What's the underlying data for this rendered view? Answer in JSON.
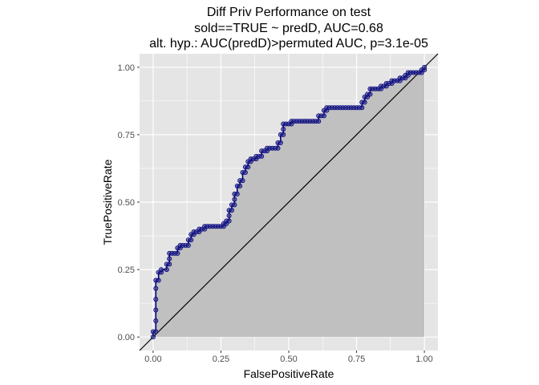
{
  "chart_data": {
    "type": "line",
    "title_lines": [
      "Diff Priv Performance on test",
      "sold==TRUE ~ predD, AUC=0.68",
      "alt. hyp.: AUC(predD)>permuted AUC, p=3.1e-05"
    ],
    "xlabel": "FalsePositiveRate",
    "ylabel": "TruePositiveRate",
    "xlim": [
      -0.05,
      1.05
    ],
    "ylim": [
      -0.05,
      1.05
    ],
    "x_ticks": [
      0,
      0.25,
      0.5,
      0.75,
      1
    ],
    "x_tick_labels": [
      "0.00",
      "0.25",
      "0.50",
      "0.75",
      "1.00"
    ],
    "y_ticks": [
      0,
      0.25,
      0.5,
      0.75,
      1
    ],
    "y_tick_labels": [
      "0.00",
      "0.25",
      "0.50",
      "0.75",
      "1.00"
    ],
    "grid": true,
    "panel_background": "#e5e5e5",
    "grid_color": "#ffffff",
    "area_fill": "#c0c0c0",
    "curve_color": "#000080",
    "point_color": "#3c3c8c",
    "diagonal_color": "#000000",
    "diagonal": [
      [
        -0.05,
        -0.05
      ],
      [
        1.05,
        1.05
      ]
    ],
    "series": [
      {
        "points": [
          [
            0.0,
            0.0
          ],
          [
            0.0,
            0.02
          ],
          [
            0.01,
            0.02
          ],
          [
            0.01,
            0.06
          ],
          [
            0.01,
            0.1
          ],
          [
            0.01,
            0.14
          ],
          [
            0.01,
            0.18
          ],
          [
            0.01,
            0.21
          ],
          [
            0.02,
            0.21
          ],
          [
            0.02,
            0.24
          ],
          [
            0.03,
            0.24
          ],
          [
            0.03,
            0.25
          ],
          [
            0.05,
            0.25
          ],
          [
            0.05,
            0.27
          ],
          [
            0.06,
            0.27
          ],
          [
            0.06,
            0.29
          ],
          [
            0.06,
            0.31
          ],
          [
            0.07,
            0.31
          ],
          [
            0.08,
            0.31
          ],
          [
            0.09,
            0.31
          ],
          [
            0.09,
            0.33
          ],
          [
            0.1,
            0.33
          ],
          [
            0.1,
            0.34
          ],
          [
            0.11,
            0.34
          ],
          [
            0.12,
            0.34
          ],
          [
            0.13,
            0.34
          ],
          [
            0.13,
            0.36
          ],
          [
            0.14,
            0.36
          ],
          [
            0.14,
            0.38
          ],
          [
            0.15,
            0.38
          ],
          [
            0.15,
            0.39
          ],
          [
            0.16,
            0.39
          ],
          [
            0.17,
            0.39
          ],
          [
            0.17,
            0.4
          ],
          [
            0.18,
            0.4
          ],
          [
            0.19,
            0.4
          ],
          [
            0.19,
            0.41
          ],
          [
            0.2,
            0.41
          ],
          [
            0.21,
            0.41
          ],
          [
            0.22,
            0.41
          ],
          [
            0.23,
            0.41
          ],
          [
            0.24,
            0.41
          ],
          [
            0.25,
            0.41
          ],
          [
            0.26,
            0.41
          ],
          [
            0.26,
            0.42
          ],
          [
            0.27,
            0.42
          ],
          [
            0.27,
            0.43
          ],
          [
            0.28,
            0.43
          ],
          [
            0.28,
            0.45
          ],
          [
            0.28,
            0.47
          ],
          [
            0.29,
            0.47
          ],
          [
            0.29,
            0.49
          ],
          [
            0.3,
            0.49
          ],
          [
            0.3,
            0.51
          ],
          [
            0.3,
            0.53
          ],
          [
            0.31,
            0.53
          ],
          [
            0.31,
            0.56
          ],
          [
            0.32,
            0.56
          ],
          [
            0.32,
            0.58
          ],
          [
            0.33,
            0.58
          ],
          [
            0.33,
            0.61
          ],
          [
            0.34,
            0.61
          ],
          [
            0.34,
            0.63
          ],
          [
            0.35,
            0.63
          ],
          [
            0.35,
            0.65
          ],
          [
            0.36,
            0.65
          ],
          [
            0.36,
            0.66
          ],
          [
            0.37,
            0.66
          ],
          [
            0.38,
            0.66
          ],
          [
            0.38,
            0.67
          ],
          [
            0.39,
            0.67
          ],
          [
            0.4,
            0.67
          ],
          [
            0.4,
            0.69
          ],
          [
            0.41,
            0.69
          ],
          [
            0.42,
            0.69
          ],
          [
            0.42,
            0.7
          ],
          [
            0.43,
            0.7
          ],
          [
            0.44,
            0.7
          ],
          [
            0.45,
            0.7
          ],
          [
            0.46,
            0.7
          ],
          [
            0.46,
            0.72
          ],
          [
            0.47,
            0.72
          ],
          [
            0.47,
            0.75
          ],
          [
            0.48,
            0.75
          ],
          [
            0.48,
            0.77
          ],
          [
            0.48,
            0.79
          ],
          [
            0.49,
            0.79
          ],
          [
            0.5,
            0.79
          ],
          [
            0.51,
            0.79
          ],
          [
            0.51,
            0.8
          ],
          [
            0.52,
            0.8
          ],
          [
            0.53,
            0.8
          ],
          [
            0.54,
            0.8
          ],
          [
            0.55,
            0.8
          ],
          [
            0.56,
            0.8
          ],
          [
            0.57,
            0.8
          ],
          [
            0.58,
            0.8
          ],
          [
            0.59,
            0.8
          ],
          [
            0.6,
            0.8
          ],
          [
            0.61,
            0.8
          ],
          [
            0.61,
            0.82
          ],
          [
            0.62,
            0.82
          ],
          [
            0.63,
            0.82
          ],
          [
            0.63,
            0.84
          ],
          [
            0.64,
            0.84
          ],
          [
            0.64,
            0.85
          ],
          [
            0.65,
            0.85
          ],
          [
            0.66,
            0.85
          ],
          [
            0.67,
            0.85
          ],
          [
            0.68,
            0.85
          ],
          [
            0.69,
            0.85
          ],
          [
            0.7,
            0.85
          ],
          [
            0.71,
            0.85
          ],
          [
            0.72,
            0.85
          ],
          [
            0.73,
            0.85
          ],
          [
            0.74,
            0.85
          ],
          [
            0.75,
            0.85
          ],
          [
            0.76,
            0.85
          ],
          [
            0.77,
            0.85
          ],
          [
            0.77,
            0.87
          ],
          [
            0.78,
            0.87
          ],
          [
            0.78,
            0.89
          ],
          [
            0.79,
            0.89
          ],
          [
            0.79,
            0.9
          ],
          [
            0.8,
            0.9
          ],
          [
            0.8,
            0.92
          ],
          [
            0.81,
            0.92
          ],
          [
            0.82,
            0.92
          ],
          [
            0.83,
            0.92
          ],
          [
            0.84,
            0.92
          ],
          [
            0.84,
            0.93
          ],
          [
            0.85,
            0.93
          ],
          [
            0.86,
            0.93
          ],
          [
            0.86,
            0.94
          ],
          [
            0.87,
            0.94
          ],
          [
            0.88,
            0.94
          ],
          [
            0.88,
            0.95
          ],
          [
            0.89,
            0.95
          ],
          [
            0.9,
            0.95
          ],
          [
            0.91,
            0.95
          ],
          [
            0.91,
            0.96
          ],
          [
            0.92,
            0.96
          ],
          [
            0.93,
            0.96
          ],
          [
            0.93,
            0.97
          ],
          [
            0.94,
            0.97
          ],
          [
            0.94,
            0.98
          ],
          [
            0.95,
            0.98
          ],
          [
            0.96,
            0.98
          ],
          [
            0.97,
            0.98
          ],
          [
            0.98,
            0.98
          ],
          [
            0.99,
            0.98
          ],
          [
            0.99,
            0.99
          ],
          [
            1.0,
            0.99
          ],
          [
            1.0,
            1.0
          ]
        ]
      }
    ]
  }
}
